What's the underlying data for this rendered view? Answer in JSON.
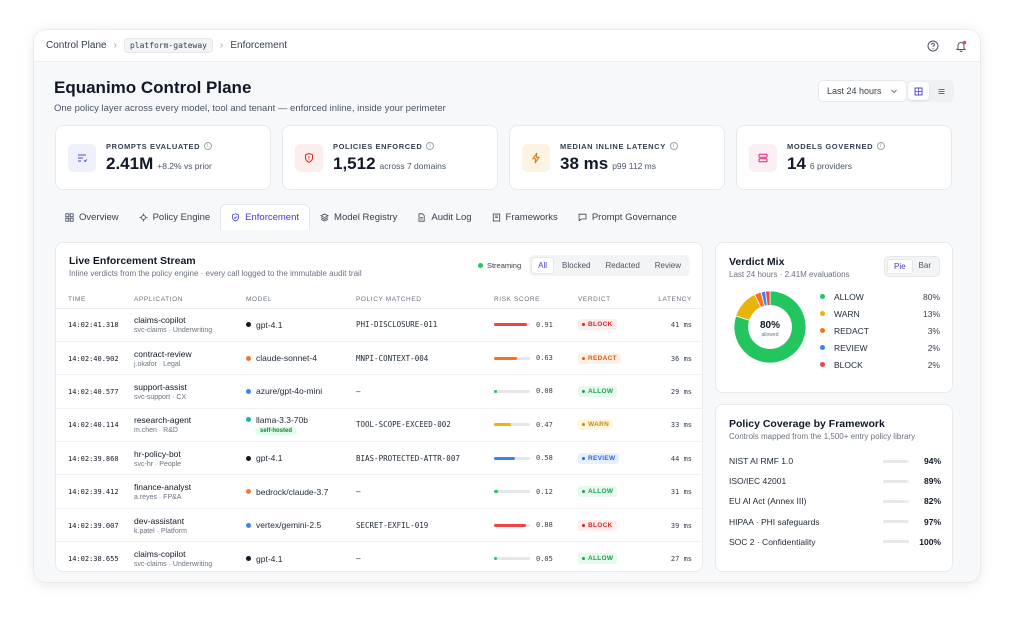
{
  "topbar": {
    "crumbs": [
      "Control Plane",
      "platform-gateway",
      "Enforcement"
    ]
  },
  "header": {
    "title": "Equanimo Control Plane",
    "subtitle": "One policy layer across every model, tool and tenant — enforced inline, inside your perimeter",
    "range_label": "Last 24 hours"
  },
  "kpis": [
    {
      "label": "PROMPTS EVALUATED",
      "value": "2.41M",
      "sub": "+8.2% vs prior",
      "icon": "list-filter-icon",
      "color": "#4f46e5",
      "bg": "#eef0fb"
    },
    {
      "label": "POLICIES ENFORCED",
      "value": "1,512",
      "sub": "across 7 domains",
      "icon": "shield-icon",
      "color": "#dc2626",
      "bg": "#fdeeee"
    },
    {
      "label": "MEDIAN INLINE LATENCY",
      "value": "38 ms",
      "sub": "p99 112 ms",
      "icon": "bolt-icon",
      "color": "#d97706",
      "bg": "#fdf3e3"
    },
    {
      "label": "MODELS GOVERNED",
      "value": "14",
      "sub": "6 providers",
      "icon": "server-icon",
      "color": "#db2777",
      "bg": "#fceef5"
    }
  ],
  "tabs": [
    {
      "label": "Overview",
      "icon": "grid-icon"
    },
    {
      "label": "Policy Engine",
      "icon": "engine-icon"
    },
    {
      "label": "Enforcement",
      "icon": "shield-check-icon",
      "active": true
    },
    {
      "label": "Model Registry",
      "icon": "layers-icon"
    },
    {
      "label": "Audit Log",
      "icon": "file-icon"
    },
    {
      "label": "Frameworks",
      "icon": "book-icon"
    },
    {
      "label": "Prompt Governance",
      "icon": "chat-icon"
    }
  ],
  "stream": {
    "title": "Live Enforcement Stream",
    "subtitle": "Inline verdicts from the policy engine · every call logged to the immutable audit trail",
    "streaming_label": "Streaming",
    "filters": [
      "All",
      "Blocked",
      "Redacted",
      "Review"
    ],
    "active_filter": "All",
    "columns": [
      "TIME",
      "APPLICATION",
      "MODEL",
      "POLICY MATCHED",
      "RISK SCORE",
      "VERDICT",
      "LATENCY"
    ],
    "rows": [
      {
        "time": "14:02:41.318",
        "app": "claims-copilot",
        "owner": "svc-claims · Underwriting",
        "model": "gpt-4.1",
        "model_color": "#111827",
        "policy": "PHI-DISCLOSURE-011",
        "risk": 0.91,
        "risk_label": "0.91",
        "risk_color": "#ef4444",
        "verdict": "BLOCK",
        "latency": "41 ms"
      },
      {
        "time": "14:02:40.902",
        "app": "contract-review",
        "owner": "j.okafor · Legal",
        "model": "claude-sonnet-4",
        "model_color": "#ea7a3d",
        "policy": "MNPI-CONTEXT-004",
        "risk": 0.63,
        "risk_label": "0.63",
        "risk_color": "#f97316",
        "verdict": "REDACT",
        "latency": "36 ms"
      },
      {
        "time": "14:02:40.577",
        "app": "support-assist",
        "owner": "svc-support · CX",
        "model": "azure/gpt-4o-mini",
        "model_color": "#3b82f6",
        "policy": "—",
        "risk": 0.08,
        "risk_label": "0.08",
        "risk_color": "#22c55e",
        "verdict": "ALLOW",
        "latency": "29 ms"
      },
      {
        "time": "14:02:40.114",
        "app": "research-agent",
        "owner": "m.chen · R&D",
        "model": "llama-3.3-70b",
        "model_color": "#14b8a6",
        "model_badge": "self-hosted",
        "policy": "TOOL-SCOPE-EXCEED-002",
        "risk": 0.47,
        "risk_label": "0.47",
        "risk_color": "#eab308",
        "verdict": "WARN",
        "latency": "33 ms"
      },
      {
        "time": "14:02:39.860",
        "app": "hr-policy-bot",
        "owner": "svc-hr · People",
        "model": "gpt-4.1",
        "model_color": "#111827",
        "policy": "BIAS-PROTECTED-ATTR-007",
        "risk": 0.58,
        "risk_label": "0.58",
        "risk_color": "#3b82f6",
        "verdict": "REVIEW",
        "latency": "44 ms"
      },
      {
        "time": "14:02:39.412",
        "app": "finance-analyst",
        "owner": "a.reyes · FP&A",
        "model": "bedrock/claude-3.7",
        "model_color": "#ea7a3d",
        "policy": "—",
        "risk": 0.12,
        "risk_label": "0.12",
        "risk_color": "#22c55e",
        "verdict": "ALLOW",
        "latency": "31 ms"
      },
      {
        "time": "14:02:39.007",
        "app": "dev-assistant",
        "owner": "k.patel · Platform",
        "model": "vertex/gemini-2.5",
        "model_color": "#3b82f6",
        "policy": "SECRET-EXFIL-019",
        "risk": 0.88,
        "risk_label": "0.88",
        "risk_color": "#ef4444",
        "verdict": "BLOCK",
        "latency": "39 ms"
      },
      {
        "time": "14:02:38.655",
        "app": "claims-copilot",
        "owner": "svc-claims · Underwriting",
        "model": "gpt-4.1",
        "model_color": "#111827",
        "policy": "—",
        "risk": 0.05,
        "risk_label": "0.05",
        "risk_color": "#22c55e",
        "verdict": "ALLOW",
        "latency": "27 ms"
      }
    ]
  },
  "verdict_styles": {
    "BLOCK": {
      "fg": "#dc2626",
      "bg": "#fdeeee"
    },
    "REDACT": {
      "fg": "#ea580c",
      "bg": "#fdf0e6"
    },
    "ALLOW": {
      "fg": "#16a34a",
      "bg": "#e9f8ee"
    },
    "WARN": {
      "fg": "#ca8a04",
      "bg": "#fdf6e0"
    },
    "REVIEW": {
      "fg": "#2563eb",
      "bg": "#e8f0fd"
    }
  },
  "verdict_mix": {
    "title": "Verdict Mix",
    "subtitle": "Last 24 hours · 2.41M evaluations",
    "toggle": [
      "Pie",
      "Bar"
    ],
    "active_toggle": "Pie",
    "center_value": "80%",
    "center_label": "allowed",
    "items": [
      {
        "label": "ALLOW",
        "value": 80,
        "value_label": "80%",
        "color": "#22c55e"
      },
      {
        "label": "WARN",
        "value": 13,
        "value_label": "13%",
        "color": "#eab308"
      },
      {
        "label": "REDACT",
        "value": 3,
        "value_label": "3%",
        "color": "#f97316"
      },
      {
        "label": "REVIEW",
        "value": 2,
        "value_label": "2%",
        "color": "#3b82f6"
      },
      {
        "label": "BLOCK",
        "value": 2,
        "value_label": "2%",
        "color": "#ef4444"
      }
    ]
  },
  "coverage": {
    "title": "Policy Coverage by Framework",
    "subtitle": "Controls mapped from the 1,500+ entry policy library",
    "items": [
      {
        "name": "NIST AI RMF 1.0",
        "value": 0.94,
        "value_label": "94%"
      },
      {
        "name": "ISO/IEC 42001",
        "value": 0.89,
        "value_label": "89%"
      },
      {
        "name": "EU AI Act (Annex III)",
        "value": 0.82,
        "value_label": "82%"
      },
      {
        "name": "HIPAA · PHI safeguards",
        "value": 0.97,
        "value_label": "97%"
      },
      {
        "name": "SOC 2 · Confidentiality",
        "value": 1.0,
        "value_label": "100%"
      }
    ]
  }
}
